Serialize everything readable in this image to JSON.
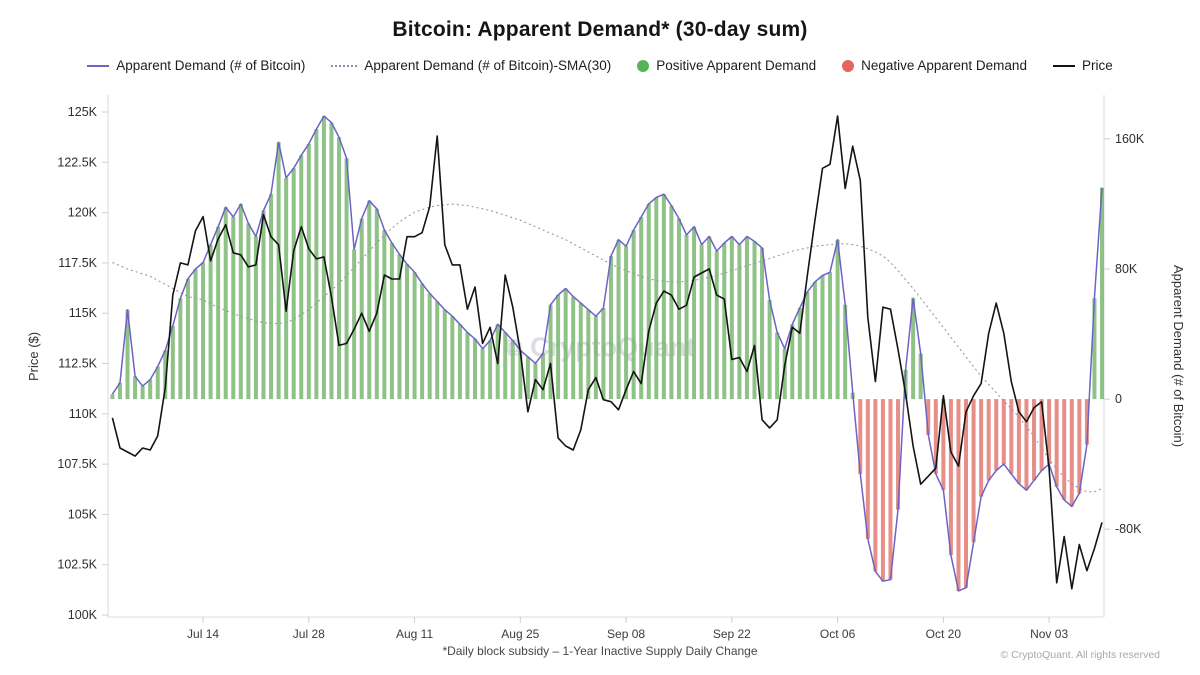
{
  "title": "Bitcoin: Apparent Demand* (30-day sum)",
  "watermark": "CryptoQuant",
  "footnote": "*Daily block subsidy – 1-Year Inactive Supply Daily Change",
  "copyright": "© CryptoQuant. All rights reserved",
  "legend": {
    "items": [
      {
        "label": "Apparent Demand (# of Bitcoin)",
        "marker": "line",
        "color": "#6c63c5"
      },
      {
        "label": "Apparent Demand (# of Bitcoin)-SMA(30)",
        "marker": "dotted",
        "color": "#8d89a6"
      },
      {
        "label": "Positive Apparent Demand",
        "marker": "dot",
        "color": "#57b456"
      },
      {
        "label": "Negative Apparent Demand",
        "marker": "dot",
        "color": "#e4655d"
      },
      {
        "label": "Price",
        "marker": "line",
        "color": "#141414"
      }
    ]
  },
  "chart_data": {
    "type": "mixed-bar-line",
    "x_frequency": "daily",
    "x_start": "Jul 02",
    "x_end": "Nov 10",
    "x_ticks": [
      {
        "label": "Jul 14",
        "index": 12
      },
      {
        "label": "Jul 28",
        "index": 26
      },
      {
        "label": "Aug 11",
        "index": 40
      },
      {
        "label": "Aug 25",
        "index": 54
      },
      {
        "label": "Sep 08",
        "index": 68
      },
      {
        "label": "Sep 22",
        "index": 82
      },
      {
        "label": "Oct 06",
        "index": 96
      },
      {
        "label": "Oct 20",
        "index": 110
      },
      {
        "label": "Nov 03",
        "index": 124
      }
    ],
    "price_axis": {
      "title": "Price ($)",
      "unit": "thousand USD",
      "min": 100,
      "max": 125,
      "ticks": [
        {
          "value": 100,
          "label": "100K"
        },
        {
          "value": 102.5,
          "label": "102.5K"
        },
        {
          "value": 105,
          "label": "105K"
        },
        {
          "value": 107.5,
          "label": "107.5K"
        },
        {
          "value": 110,
          "label": "110K"
        },
        {
          "value": 112.5,
          "label": "112.5K"
        },
        {
          "value": 115,
          "label": "115K"
        },
        {
          "value": 117.5,
          "label": "117.5K"
        },
        {
          "value": 120,
          "label": "120K"
        },
        {
          "value": 122.5,
          "label": "122.5K"
        },
        {
          "value": 125,
          "label": "125K"
        }
      ]
    },
    "demand_axis": {
      "title": "Apparent Demand (# of Bitcoin)",
      "unit": "thousand BTC",
      "min": -134,
      "max": 187,
      "ticks": [
        {
          "value": -80,
          "label": "-80K"
        },
        {
          "value": 0,
          "label": "0"
        },
        {
          "value": 80,
          "label": "80K"
        },
        {
          "value": 160,
          "label": "160K"
        }
      ]
    },
    "style": {
      "positive_bar_color": "#76b56c",
      "negative_bar_color": "#e0756d",
      "demand_line_color": "#6c63c5",
      "sma_color": "#9a95b3",
      "price_line_color": "#141414"
    },
    "series_meta": [
      {
        "name": "Apparent Demand (# of Bitcoin)",
        "key": "demand",
        "type": "line",
        "axis": "demand"
      },
      {
        "name": "Apparent Demand bars (positive green / negative red)",
        "key": "demand",
        "type": "bar",
        "axis": "demand"
      },
      {
        "name": "Apparent Demand (# of Bitcoin)-SMA(30)",
        "key": "sma30",
        "type": "dotted-line",
        "axis": "demand"
      },
      {
        "name": "Price",
        "key": "price",
        "type": "line",
        "axis": "price"
      }
    ],
    "values": {
      "demand": [
        3,
        10,
        55,
        14,
        8,
        12,
        20,
        30,
        45,
        62,
        74,
        80,
        84,
        95,
        106,
        118,
        112,
        120,
        108,
        100,
        116,
        126,
        158,
        136,
        142,
        150,
        157,
        166,
        174,
        170,
        161,
        148,
        92,
        111,
        122,
        117,
        104,
        96,
        89,
        83,
        78,
        71,
        65,
        60,
        55,
        51,
        46,
        41,
        37,
        31,
        36,
        46,
        41,
        36,
        30,
        26,
        22,
        28,
        58,
        64,
        68,
        63,
        59,
        55,
        51,
        56,
        88,
        98,
        94,
        104,
        112,
        120,
        124,
        126,
        119,
        111,
        101,
        106,
        95,
        100,
        91,
        96,
        100,
        95,
        100,
        97,
        93,
        61,
        41,
        31,
        46,
        56,
        66,
        72,
        76,
        78,
        98,
        58,
        4,
        -46,
        -86,
        -106,
        -112,
        -111,
        -68,
        18,
        62,
        28,
        -22,
        -46,
        -56,
        -96,
        -118,
        -116,
        -88,
        -60,
        -50,
        -44,
        -40,
        -46,
        -52,
        -56,
        -50,
        -44,
        -40,
        -54,
        -62,
        -66,
        -58,
        -28,
        62,
        130
      ],
      "sma30": [
        84,
        82,
        80,
        78.5,
        77,
        75.5,
        73,
        70.5,
        68,
        65.5,
        63,
        62,
        61,
        58.5,
        56.5,
        54.5,
        52.5,
        51,
        49.5,
        48,
        47,
        46.5,
        46.5,
        47,
        49,
        52,
        55,
        59,
        63,
        67,
        71,
        76,
        81,
        86,
        91,
        96,
        101,
        105,
        109,
        112,
        115,
        116.5,
        118,
        119,
        119.5,
        120,
        119.5,
        119,
        118,
        117,
        116,
        114.5,
        113,
        111.5,
        110,
        108,
        106,
        104,
        102,
        100,
        98,
        95.5,
        93,
        90.5,
        88,
        85.5,
        83,
        81,
        79,
        77,
        75.5,
        74,
        73,
        72.5,
        72,
        72,
        72.5,
        73,
        74,
        75,
        76,
        77.5,
        79,
        80.5,
        82,
        83.5,
        85,
        86.5,
        88,
        89.5,
        91,
        92,
        93,
        94,
        94.5,
        95,
        95.5,
        95.5,
        95,
        94,
        92.5,
        90.5,
        88,
        84,
        79,
        73.5,
        68,
        62,
        56,
        50,
        44,
        38,
        32,
        26,
        20,
        14,
        9,
        4,
        -1,
        -6,
        -11,
        -17,
        -23,
        -30,
        -37,
        -43,
        -48,
        -52,
        -55,
        -57,
        -57,
        -55
      ],
      "price": [
        109.8,
        108.3,
        108.1,
        107.9,
        108.3,
        108.2,
        108.9,
        111.3,
        115.9,
        117.5,
        117.4,
        119.1,
        119.8,
        117.6,
        118.7,
        119.4,
        118.0,
        117.9,
        117.3,
        117.4,
        119.9,
        118.8,
        118.4,
        115.1,
        118.1,
        119.3,
        118.2,
        117.7,
        117.8,
        115.8,
        113.4,
        113.5,
        114.2,
        115.0,
        114.1,
        115.0,
        116.9,
        116.7,
        116.7,
        118.8,
        118.8,
        119.0,
        120.3,
        123.8,
        118.4,
        117.4,
        117.4,
        115.2,
        116.3,
        113.5,
        114.3,
        112.5,
        116.9,
        115.3,
        113.1,
        110.1,
        111.7,
        111.2,
        112.5,
        108.8,
        108.4,
        108.2,
        109.2,
        111.2,
        111.8,
        110.7,
        110.6,
        110.2,
        111.2,
        112.1,
        111.5,
        114.1,
        115.5,
        116.1,
        115.9,
        115.2,
        115.4,
        116.8,
        117.0,
        117.2,
        115.9,
        115.7,
        112.7,
        112.8,
        112.1,
        113.4,
        109.7,
        109.3,
        109.7,
        112.4,
        114.3,
        114.0,
        116.9,
        119.6,
        122.2,
        122.4,
        124.8,
        121.2,
        123.3,
        121.6,
        114.8,
        111.6,
        115.3,
        115.2,
        113.2,
        111.0,
        108.4,
        106.5,
        106.9,
        107.3,
        110.9,
        108.1,
        107.4,
        110.1,
        110.9,
        111.5,
        114.0,
        115.5,
        114.0,
        111.6,
        110.1,
        109.6,
        110.3,
        110.6,
        107.3,
        101.6,
        103.9,
        101.3,
        103.5,
        102.2,
        103.3,
        104.6
      ]
    }
  }
}
